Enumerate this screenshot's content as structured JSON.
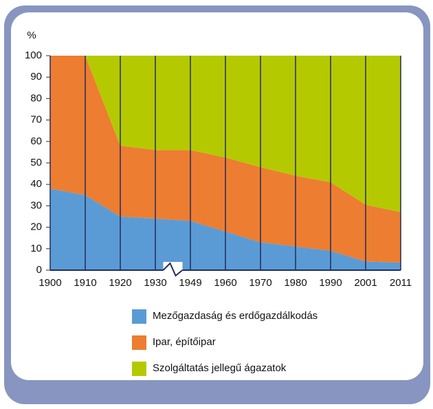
{
  "chart_data": {
    "type": "stacked_area",
    "y_label": "%",
    "categories": [
      "1900",
      "1910",
      "1920",
      "1930",
      "1949",
      "1960",
      "1970",
      "1980",
      "1990",
      "2001",
      "2011"
    ],
    "series": [
      {
        "name": "Mezőgazdaság és erdőgazdálkodás",
        "color": "#5b9bd5",
        "values": [
          38,
          35,
          25,
          24,
          23,
          18,
          13,
          11,
          9,
          4,
          3.5
        ]
      },
      {
        "name": "Ipar, építőipar",
        "color": "#ed7d31",
        "values": [
          62,
          65,
          33,
          32,
          33,
          34.5,
          35,
          33,
          32,
          26.5,
          23.5
        ]
      },
      {
        "name": "Szolgáltatás jellegű ágazatok",
        "color": "#b5c900",
        "values": [
          0,
          0,
          42,
          44,
          44,
          47.5,
          52,
          56,
          59,
          69.5,
          73
        ]
      }
    ],
    "ylim": [
      0,
      100
    ],
    "yticks": [
      0,
      10,
      20,
      30,
      40,
      50,
      60,
      70,
      80,
      90,
      100
    ]
  }
}
